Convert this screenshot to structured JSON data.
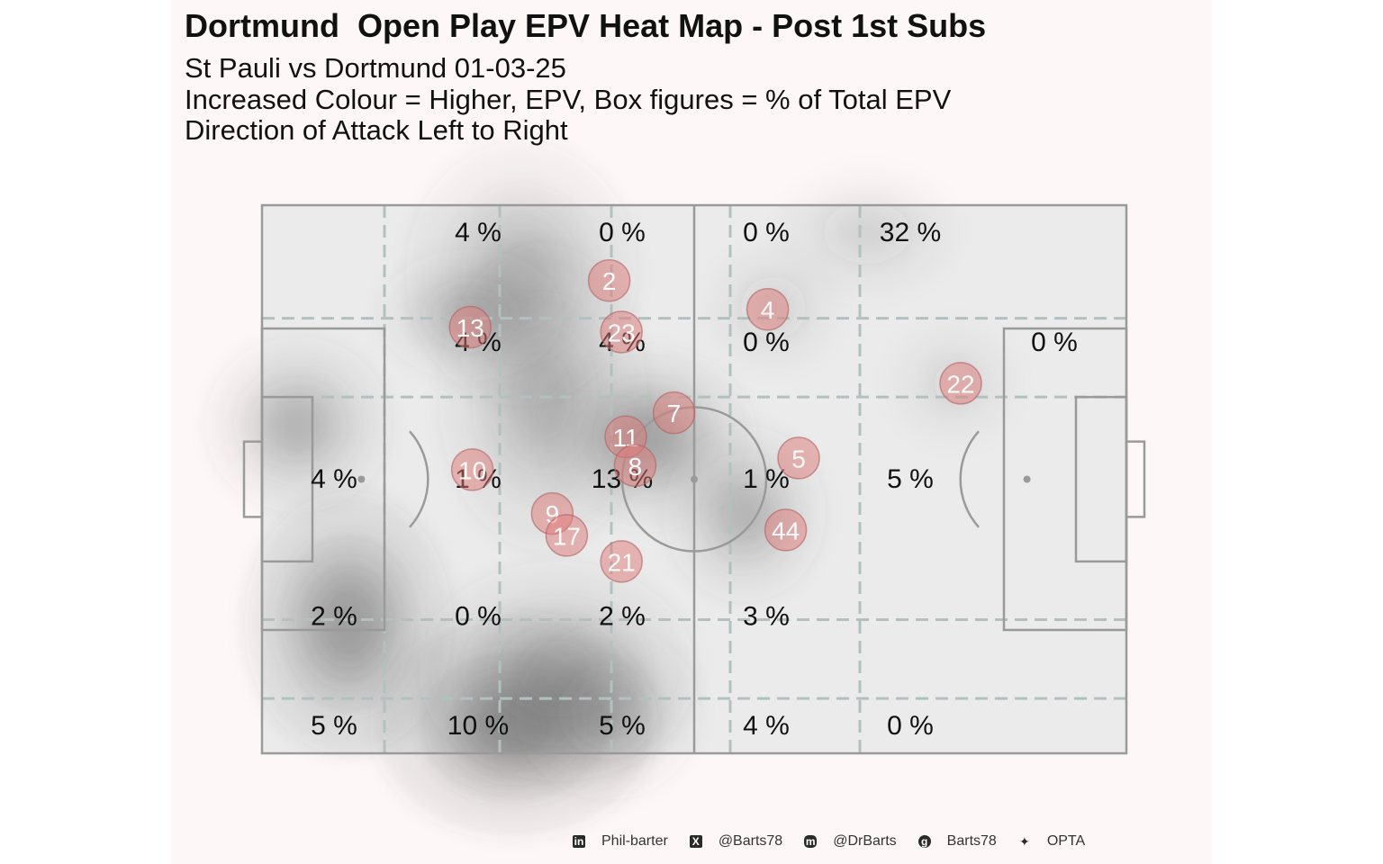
{
  "title": "Dortmund  Open Play EPV Heat Map - Post 1st Subs",
  "subtitle_lines": [
    "St Pauli vs Dortmund 01-03-25",
    "Increased Colour = Higher, EPV, Box figures = % of Total EPV",
    "Direction of Attack Left to Right"
  ],
  "colors": {
    "panel_background": "#fdf7f7",
    "pitch_fill": "#ebebeb",
    "pitch_lines": "#9a9a9a",
    "zone_lines": "#b4c0c0",
    "player_marker": "#e07a7a",
    "heat_dark": "#4a4a4a"
  },
  "chart_data": {
    "type": "heatmap",
    "title": "Dortmund  Open Play EPV Heat Map - Post 1st Subs",
    "xlim": [
      0,
      120
    ],
    "ylim": [
      0,
      80
    ],
    "direction": "left-to-right",
    "zones": [
      {
        "x": 10,
        "y": 4,
        "label": ""
      },
      {
        "x": 30,
        "y": 4,
        "label": "4 %"
      },
      {
        "x": 50,
        "y": 4,
        "label": "0 %"
      },
      {
        "x": 70,
        "y": 4,
        "label": "0 %"
      },
      {
        "x": 90,
        "y": 4,
        "label": "32 %"
      },
      {
        "x": 110,
        "y": 4,
        "label": ""
      },
      {
        "x": 10,
        "y": 20,
        "label": ""
      },
      {
        "x": 30,
        "y": 20,
        "label": "4 %"
      },
      {
        "x": 50,
        "y": 20,
        "label": "4 %"
      },
      {
        "x": 70,
        "y": 20,
        "label": "0 %"
      },
      {
        "x": 90,
        "y": 20,
        "label": ""
      },
      {
        "x": 110,
        "y": 20,
        "label": "0 %"
      },
      {
        "x": 10,
        "y": 40,
        "label": "4 %"
      },
      {
        "x": 30,
        "y": 40,
        "label": "1 %"
      },
      {
        "x": 50,
        "y": 40,
        "label": "13 %"
      },
      {
        "x": 70,
        "y": 40,
        "label": "1 %"
      },
      {
        "x": 90,
        "y": 40,
        "label": "5 %"
      },
      {
        "x": 110,
        "y": 40,
        "label": ""
      },
      {
        "x": 10,
        "y": 60,
        "label": "2 %"
      },
      {
        "x": 30,
        "y": 60,
        "label": "0 %"
      },
      {
        "x": 50,
        "y": 60,
        "label": "2 %"
      },
      {
        "x": 70,
        "y": 60,
        "label": "3 %"
      },
      {
        "x": 90,
        "y": 60,
        "label": ""
      },
      {
        "x": 110,
        "y": 60,
        "label": ""
      },
      {
        "x": 10,
        "y": 76,
        "label": "5 %"
      },
      {
        "x": 30,
        "y": 76,
        "label": "10 %"
      },
      {
        "x": 50,
        "y": 76,
        "label": "5 %"
      },
      {
        "x": 70,
        "y": 76,
        "label": "4 %"
      },
      {
        "x": 90,
        "y": 76,
        "label": "0 %"
      },
      {
        "x": 110,
        "y": 76,
        "label": ""
      }
    ],
    "players": [
      {
        "number": "2",
        "x": 48.2,
        "y": 11.0
      },
      {
        "number": "13",
        "x": 28.9,
        "y": 17.8
      },
      {
        "number": "23",
        "x": 49.9,
        "y": 18.5
      },
      {
        "number": "4",
        "x": 70.2,
        "y": 15.2
      },
      {
        "number": "22",
        "x": 97.0,
        "y": 26.0
      },
      {
        "number": "7",
        "x": 57.2,
        "y": 30.3
      },
      {
        "number": "11",
        "x": 50.5,
        "y": 33.8
      },
      {
        "number": "8",
        "x": 51.8,
        "y": 38.0
      },
      {
        "number": "5",
        "x": 74.5,
        "y": 36.9
      },
      {
        "number": "10",
        "x": 29.2,
        "y": 38.6
      },
      {
        "number": "9",
        "x": 40.3,
        "y": 45.0
      },
      {
        "number": "17",
        "x": 42.3,
        "y": 48.2
      },
      {
        "number": "44",
        "x": 72.7,
        "y": 47.4
      },
      {
        "number": "21",
        "x": 49.9,
        "y": 52.0
      }
    ],
    "density_blobs": [
      {
        "x": 35.0,
        "y": 76.0,
        "rx": 6.0,
        "ry": 5.0,
        "weight": 1.0
      },
      {
        "x": 12.0,
        "y": 61.0,
        "rx": 4.5,
        "ry": 6.0,
        "weight": 0.85
      },
      {
        "x": 41.0,
        "y": 68.0,
        "rx": 6.0,
        "ry": 5.0,
        "weight": 0.55
      },
      {
        "x": 48.0,
        "y": 74.0,
        "rx": 4.0,
        "ry": 4.0,
        "weight": 0.45
      },
      {
        "x": 53.5,
        "y": 34.0,
        "rx": 4.5,
        "ry": 4.0,
        "weight": 0.75
      },
      {
        "x": 39.0,
        "y": 28.0,
        "rx": 4.5,
        "ry": 7.0,
        "weight": 0.55
      },
      {
        "x": 36.0,
        "y": 10.0,
        "rx": 5.0,
        "ry": 6.0,
        "weight": 0.5
      },
      {
        "x": 29.0,
        "y": 16.0,
        "rx": 4.0,
        "ry": 3.0,
        "weight": 0.45
      },
      {
        "x": 5.0,
        "y": 32.0,
        "rx": 4.0,
        "ry": 4.0,
        "weight": 0.55
      },
      {
        "x": 67.0,
        "y": 45.0,
        "rx": 3.5,
        "ry": 4.0,
        "weight": 0.55
      },
      {
        "x": 84.0,
        "y": 4.0,
        "rx": 4.0,
        "ry": 3.0,
        "weight": 0.2
      },
      {
        "x": 71.0,
        "y": 15.0,
        "rx": 3.0,
        "ry": 3.0,
        "weight": 0.2
      },
      {
        "x": 96.0,
        "y": 26.0,
        "rx": 3.0,
        "ry": 3.0,
        "weight": 0.15
      }
    ]
  },
  "footer": [
    {
      "icon": "linkedin-icon",
      "text": "Phil-barter"
    },
    {
      "icon": "x-icon",
      "text": "@Barts78"
    },
    {
      "icon": "mastodon-icon",
      "text": "@DrBarts"
    },
    {
      "icon": "github-icon",
      "text": "Barts78"
    },
    {
      "icon": "dropbox-icon",
      "text": "OPTA"
    }
  ]
}
